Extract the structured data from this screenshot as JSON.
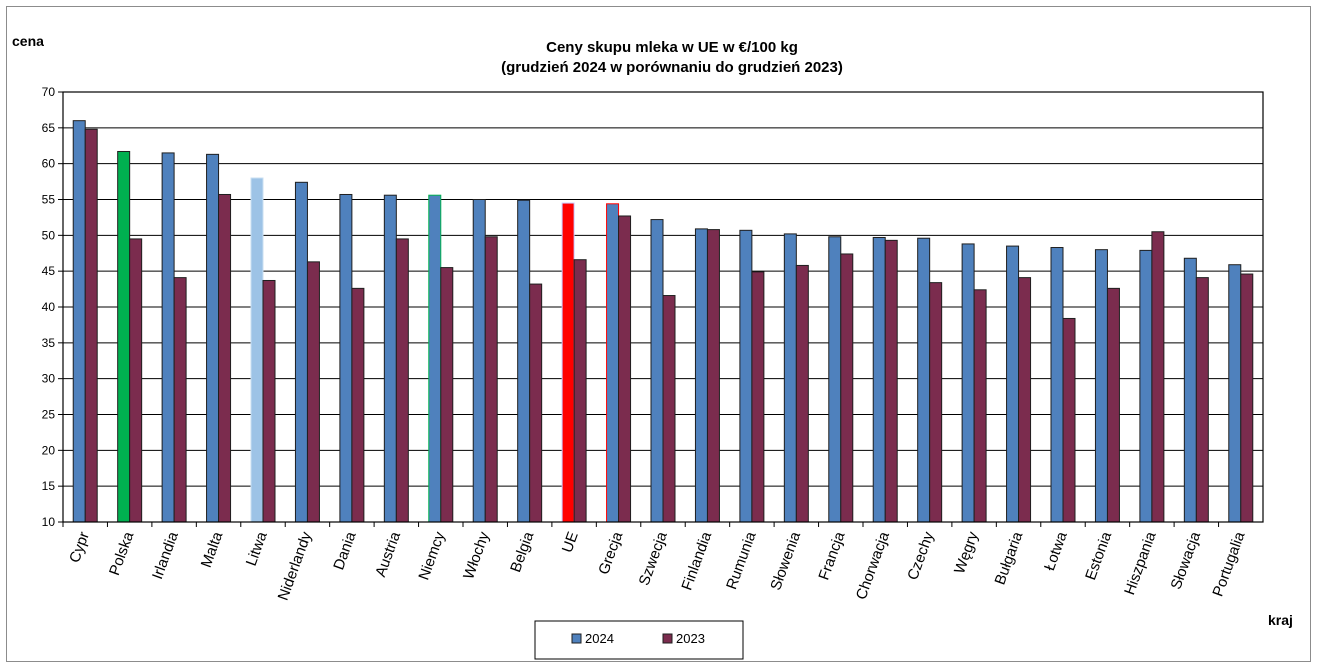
{
  "chart_data": {
    "type": "bar",
    "title": "Ceny skupu mleka  w UE w €/100 kg",
    "subtitle": "(grudzień 2024  w porównaniu do grudzień 2023)",
    "ylabel": "cena",
    "xlabel": "kraj",
    "ylim": [
      10,
      70
    ],
    "yticks": [
      10,
      15,
      20,
      25,
      30,
      35,
      40,
      45,
      50,
      55,
      60,
      65,
      70
    ],
    "grid": true,
    "legend_position": "bottom",
    "categories": [
      "Cypr",
      "Polska",
      "Irlandia",
      "Malta",
      "Litwa",
      "Niderlandy",
      "Dania",
      "Austria",
      "Niemcy",
      "Włochy",
      "Belgia",
      "UE",
      "Grecja",
      "Szwecja",
      "Finlandia",
      "Rumunia",
      "Słowenia",
      "Francja",
      "Chorwacja",
      "Czechy",
      "Węgry",
      "Bułgaria",
      "Łotwa",
      "Estonia",
      "Hiszpania",
      "Słowacja",
      "Portugalia"
    ],
    "series": [
      {
        "name": "2024",
        "color": "#4f81bd",
        "values": [
          66.0,
          61.7,
          61.5,
          61.3,
          58.0,
          57.4,
          55.7,
          55.6,
          55.6,
          55.0,
          54.9,
          54.5,
          54.4,
          52.2,
          50.9,
          50.7,
          50.2,
          49.8,
          49.7,
          49.6,
          48.8,
          48.5,
          48.3,
          48.0,
          47.9,
          46.8,
          45.9
        ],
        "highlight_colors": {
          "Polska": "#00b050",
          "Litwa": "#9dc3e6",
          "Niemcy": "#4f81bd",
          "UE": "#ff0000",
          "Grecja": "#4f81bd"
        },
        "highlight_borders": {
          "Litwa": "#c9dff2",
          "Niemcy": "#00b050",
          "UE": "#c9c9ff",
          "Grecja": "#ff0000"
        }
      },
      {
        "name": "2023",
        "color": "#7b2c4e",
        "values": [
          64.8,
          49.5,
          44.1,
          55.7,
          43.7,
          46.3,
          42.6,
          49.5,
          45.5,
          49.8,
          43.2,
          46.6,
          52.7,
          41.6,
          50.8,
          44.9,
          45.8,
          47.4,
          49.3,
          43.4,
          42.4,
          44.1,
          38.4,
          42.6,
          50.5,
          44.1,
          44.6
        ]
      }
    ]
  }
}
